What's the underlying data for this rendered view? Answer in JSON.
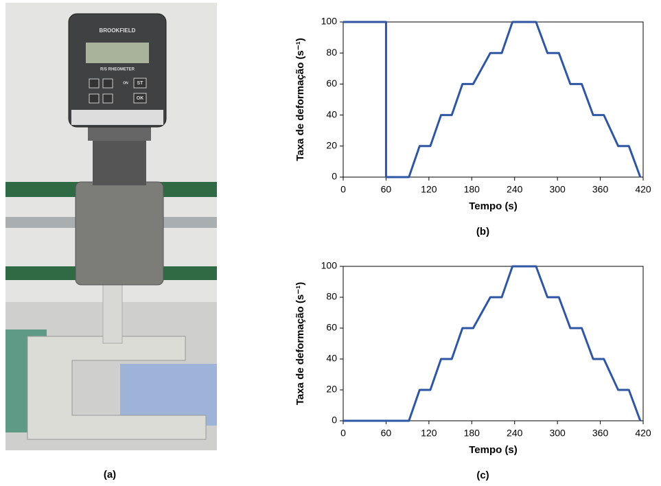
{
  "photo": {
    "caption": "(a)",
    "brand": "BROOKFIELD",
    "model": "R/S RHEOMETER",
    "buttons": [
      "ST",
      "OK"
    ],
    "indicator": "ON"
  },
  "chart_data": [
    {
      "type": "line",
      "caption": "(b)",
      "xlabel": "Tempo (s)",
      "ylabel": "Taxa de deformação (s⁻¹)",
      "x": [
        0,
        60,
        60,
        92,
        107,
        122,
        137,
        152,
        167,
        182,
        206,
        222,
        237,
        270,
        286,
        302,
        318,
        334,
        350,
        365,
        385,
        400,
        416
      ],
      "series": [
        {
          "color": "#2e56a3",
          "values": [
            100,
            100,
            0,
            0,
            20,
            20,
            40,
            40,
            60,
            60,
            80,
            80,
            100,
            100,
            80,
            80,
            60,
            60,
            40,
            40,
            20,
            20,
            0
          ]
        }
      ],
      "xlim": [
        0,
        420
      ],
      "ylim": [
        0,
        100
      ],
      "xticks": [
        0,
        60,
        120,
        180,
        240,
        300,
        360,
        420
      ],
      "yticks": [
        0,
        20,
        40,
        60,
        80,
        100
      ]
    },
    {
      "type": "line",
      "caption": "(c)",
      "xlabel": "Tempo (s)",
      "ylabel": "Taxa de deformação (s⁻¹)",
      "x": [
        0,
        92,
        107,
        122,
        137,
        152,
        167,
        182,
        206,
        222,
        237,
        270,
        286,
        302,
        318,
        334,
        350,
        365,
        385,
        400,
        416
      ],
      "series": [
        {
          "color": "#2e56a3",
          "values": [
            0,
            0,
            20,
            20,
            40,
            40,
            60,
            60,
            80,
            80,
            100,
            100,
            80,
            80,
            60,
            60,
            40,
            40,
            20,
            20,
            0
          ]
        }
      ],
      "xlim": [
        0,
        420
      ],
      "ylim": [
        0,
        100
      ],
      "xticks": [
        0,
        60,
        120,
        180,
        240,
        300,
        360,
        420
      ],
      "yticks": [
        0,
        20,
        40,
        60,
        80,
        100
      ]
    }
  ]
}
